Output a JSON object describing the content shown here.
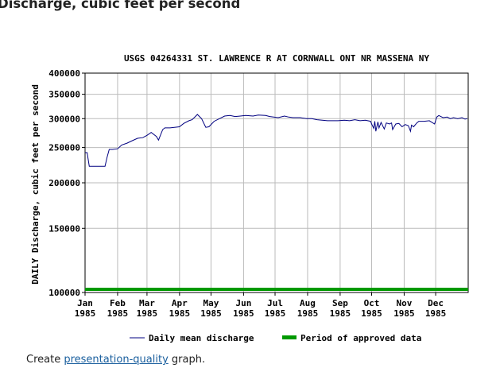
{
  "page": {
    "heading": "Discharge, cubic feet per second",
    "footer_prefix": "Create ",
    "footer_link": "presentation-quality",
    "footer_suffix": " graph."
  },
  "colors": {
    "series_line": "#000080",
    "approved_bar": "#009900",
    "grid": "#bbbbbb"
  },
  "chart_data": {
    "type": "line",
    "title": "USGS 04264331 ST. LAWRENCE R AT CORNWALL ONT NR MASSENA NY",
    "ylabel": "DAILY Discharge, cubic feet per second",
    "yscale": "log",
    "ylim": [
      100000,
      400000
    ],
    "y_ticks": [
      100000,
      150000,
      200000,
      250000,
      300000,
      350000,
      400000
    ],
    "y_tick_labels": [
      "100000",
      "150000",
      "200000",
      "250000",
      "300000",
      "350000",
      "400000"
    ],
    "x_ticks": [
      {
        "date": "1985-01-01",
        "month": "Jan",
        "year": "1985"
      },
      {
        "date": "1985-02-01",
        "month": "Feb",
        "year": "1985"
      },
      {
        "date": "1985-03-01",
        "month": "Mar",
        "year": "1985"
      },
      {
        "date": "1985-04-01",
        "month": "Apr",
        "year": "1985"
      },
      {
        "date": "1985-05-01",
        "month": "May",
        "year": "1985"
      },
      {
        "date": "1985-06-01",
        "month": "Jun",
        "year": "1985"
      },
      {
        "date": "1985-07-01",
        "month": "Jul",
        "year": "1985"
      },
      {
        "date": "1985-08-01",
        "month": "Aug",
        "year": "1985"
      },
      {
        "date": "1985-09-01",
        "month": "Sep",
        "year": "1985"
      },
      {
        "date": "1985-10-01",
        "month": "Oct",
        "year": "1985"
      },
      {
        "date": "1985-11-01",
        "month": "Nov",
        "year": "1985"
      },
      {
        "date": "1985-12-01",
        "month": "Dec",
        "year": "1985"
      }
    ],
    "xlim": [
      "1985-01-01",
      "1986-01-01"
    ],
    "grid": true,
    "legend": {
      "placement": "bottom",
      "series_label": "Daily mean discharge",
      "approved_label": "Period of approved data"
    },
    "approved_period": [
      "1985-01-01",
      "1986-01-01"
    ],
    "series": [
      {
        "x": [
          "1985-01-01",
          "1985-01-03",
          "1985-01-05",
          "1985-01-10",
          "1985-01-15",
          "1985-01-20",
          "1985-01-22",
          "1985-01-24",
          "1985-01-27",
          "1985-02-01",
          "1985-02-05",
          "1985-02-10",
          "1985-02-15",
          "1985-02-20",
          "1985-02-25",
          "1985-03-01",
          "1985-03-05",
          "1985-03-10",
          "1985-03-12",
          "1985-03-16",
          "1985-03-18",
          "1985-03-23",
          "1985-04-01",
          "1985-04-05",
          "1985-04-10",
          "1985-04-13",
          "1985-04-16",
          "1985-04-18",
          "1985-04-20",
          "1985-04-22",
          "1985-04-26",
          "1985-04-29",
          "1985-05-04",
          "1985-05-09",
          "1985-05-14",
          "1985-05-19",
          "1985-05-24",
          "1985-05-29",
          "1985-06-03",
          "1985-06-10",
          "1985-06-15",
          "1985-06-22",
          "1985-06-26",
          "1985-07-04",
          "1985-07-10",
          "1985-07-14",
          "1985-07-18",
          "1985-07-25",
          "1985-07-31",
          "1985-08-05",
          "1985-08-10",
          "1985-08-15",
          "1985-08-20",
          "1985-08-25",
          "1985-08-30",
          "1985-09-05",
          "1985-09-10",
          "1985-09-15",
          "1985-09-20",
          "1985-09-25",
          "1985-09-30",
          "1985-10-01",
          "1985-10-03",
          "1985-10-04",
          "1985-10-05",
          "1985-10-07",
          "1985-10-08",
          "1985-10-10",
          "1985-10-13",
          "1985-10-15",
          "1985-10-18",
          "1985-10-20",
          "1985-10-21",
          "1985-10-24",
          "1985-10-27",
          "1985-10-30",
          "1985-11-02",
          "1985-11-05",
          "1985-11-07",
          "1985-11-08",
          "1985-11-10",
          "1985-11-13",
          "1985-11-15",
          "1985-11-20",
          "1985-11-25",
          "1985-11-30",
          "1985-12-02",
          "1985-12-04",
          "1985-12-08",
          "1985-12-12",
          "1985-12-15",
          "1985-12-18",
          "1985-12-22",
          "1985-12-26",
          "1985-12-29",
          "1985-12-31"
        ],
        "y": [
          242000,
          242000,
          222000,
          222000,
          222000,
          222000,
          235000,
          247000,
          247000,
          248000,
          254000,
          257000,
          261000,
          265000,
          266000,
          270000,
          275000,
          268000,
          262000,
          280000,
          283000,
          283000,
          285000,
          291000,
          296000,
          298000,
          304000,
          308000,
          304000,
          300000,
          284000,
          285000,
          295000,
          300000,
          305000,
          306000,
          304000,
          305000,
          306000,
          305000,
          307000,
          306000,
          304000,
          302000,
          305000,
          303000,
          302000,
          302000,
          300000,
          300000,
          298000,
          297000,
          296000,
          296000,
          296000,
          297000,
          296000,
          298000,
          296000,
          297000,
          295000,
          290000,
          282000,
          295000,
          277000,
          294000,
          283000,
          293000,
          281000,
          292000,
          290000,
          292000,
          280000,
          290000,
          291000,
          285000,
          289000,
          287000,
          277000,
          288000,
          285000,
          292000,
          295000,
          295000,
          296000,
          290000,
          303000,
          306000,
          302000,
          303000,
          300000,
          302000,
          300000,
          302000,
          299000,
          300000
        ]
      }
    ]
  }
}
